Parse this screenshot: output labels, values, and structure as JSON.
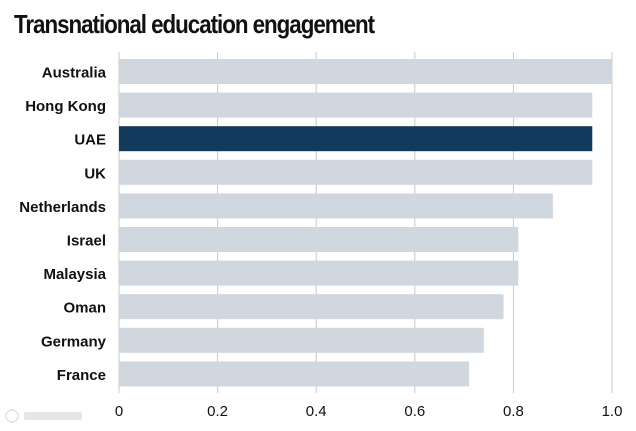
{
  "chart_data": {
    "type": "bar",
    "orientation": "horizontal",
    "title": "Transnational education engagement",
    "xlabel": "",
    "ylabel": "",
    "categories": [
      "Australia",
      "Hong Kong",
      "UAE",
      "UK",
      "Netherlands",
      "Israel",
      "Malaysia",
      "Oman",
      "Germany",
      "France"
    ],
    "values": [
      1.0,
      0.96,
      0.96,
      0.96,
      0.88,
      0.81,
      0.81,
      0.78,
      0.74,
      0.71
    ],
    "highlight": "UAE",
    "xlim": [
      0,
      1.0
    ],
    "xticks": [
      "0",
      "0.2",
      "0.4",
      "0.6",
      "0.8",
      "1.0"
    ],
    "xtick_values": [
      0,
      0.2,
      0.4,
      0.6,
      0.8,
      1.0
    ],
    "grid": "vertical",
    "colors": {
      "bar": "#d0d7de",
      "highlight": "#113a5d",
      "grid": "#c8c8c8",
      "text": "#111111"
    }
  }
}
